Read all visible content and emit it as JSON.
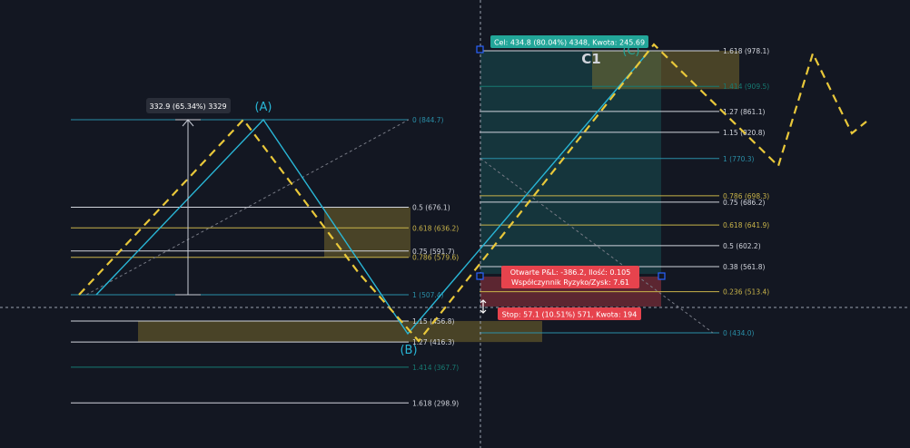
{
  "chart_data": {
    "type": "line",
    "title": "",
    "ylim": [
      280,
      1000
    ],
    "grid": false,
    "colors": {
      "background": "#131722",
      "pattern": "#29b6d6",
      "projection": "#e9c83a",
      "fib_white": "#d1d4dc",
      "fib_yellow": "#c9b44a",
      "fib_cyan": "#2a8fa8",
      "fib_teal_dark": "#177a72",
      "target": "#22a699",
      "stop": "#e6434d",
      "zone_fill": "#8b7b2e"
    },
    "points": [
      {
        "label": "(A)",
        "price": 844.7
      },
      {
        "label": "(B)",
        "price": 416.3
      },
      {
        "label": "(C)",
        "price": 978.1
      }
    ],
    "cycle_label": "C1",
    "measure_label": "332.9 (65.34%) 3329",
    "fib_left": [
      {
        "level": "0",
        "price": 844.7,
        "text": "0 (844.7)",
        "tone": "fib_cyan"
      },
      {
        "level": "0.5",
        "price": 676.1,
        "text": "0.5 (676.1)",
        "tone": "fib_white"
      },
      {
        "level": "0.618",
        "price": 636.2,
        "text": "0.618 (636.2)",
        "tone": "fib_yellow"
      },
      {
        "level": "0.75",
        "price": 591.7,
        "text": "0.75 (591.7)",
        "tone": "fib_white"
      },
      {
        "level": "0.786",
        "price": 579.6,
        "text": "0.786 (579.6)",
        "tone": "fib_yellow"
      },
      {
        "level": "1",
        "price": 507.4,
        "text": "1 (507.4)",
        "tone": "fib_cyan"
      },
      {
        "level": "1.15",
        "price": 456.8,
        "text": "1.15 (456.8)",
        "tone": "fib_white"
      },
      {
        "level": "1.27",
        "price": 416.3,
        "text": "1.27 (416.3)",
        "tone": "fib_white"
      },
      {
        "level": "1.414",
        "price": 367.7,
        "text": "1.414 (367.7)",
        "tone": "fib_teal_dark"
      },
      {
        "level": "1.618",
        "price": 298.9,
        "text": "1.618 (298.9)",
        "tone": "fib_white"
      }
    ],
    "fib_right": [
      {
        "level": "1.618",
        "price": 978.1,
        "text": "1.618 (978.1)",
        "tone": "fib_white"
      },
      {
        "level": "1.414",
        "price": 909.5,
        "text": "1.414 (909.5)",
        "tone": "fib_teal_dark"
      },
      {
        "level": "1.27",
        "price": 861.1,
        "text": "1.27 (861.1)",
        "tone": "fib_white"
      },
      {
        "level": "1.15",
        "price": 820.8,
        "text": "1.15 (820.8)",
        "tone": "fib_white"
      },
      {
        "level": "1",
        "price": 770.3,
        "text": "1 (770.3)",
        "tone": "fib_cyan"
      },
      {
        "level": "0.786",
        "price": 698.3,
        "text": "0.786 (698.3)",
        "tone": "fib_yellow"
      },
      {
        "level": "0.75",
        "price": 686.2,
        "text": "0.75 (686.2)",
        "tone": "fib_white"
      },
      {
        "level": "0.618",
        "price": 641.9,
        "text": "0.618 (641.9)",
        "tone": "fib_yellow"
      },
      {
        "level": "0.5",
        "price": 602.2,
        "text": "0.5 (602.2)",
        "tone": "fib_white"
      },
      {
        "level": "0.38",
        "price": 561.8,
        "text": "0.38 (561.8)",
        "tone": "fib_white"
      },
      {
        "level": "0.236",
        "price": 513.4,
        "text": "0.236 (513.4)",
        "tone": "fib_yellow"
      },
      {
        "level": "0",
        "price": 434.0,
        "text": "0 (434.0)",
        "tone": "fib_cyan"
      }
    ],
    "position": {
      "target_label": "Cel: 434.8 (80.04%) 4348, Kwota: 245.69",
      "pnl_label": "Otwarte P&L: -386.2, Ilość: 0.105",
      "ratio_label": "Współczynnik Ryzyko/Zysk: 7.61",
      "stop_label": "Stop: 57.1 (10.51%) 571, Kwota: 194"
    }
  }
}
